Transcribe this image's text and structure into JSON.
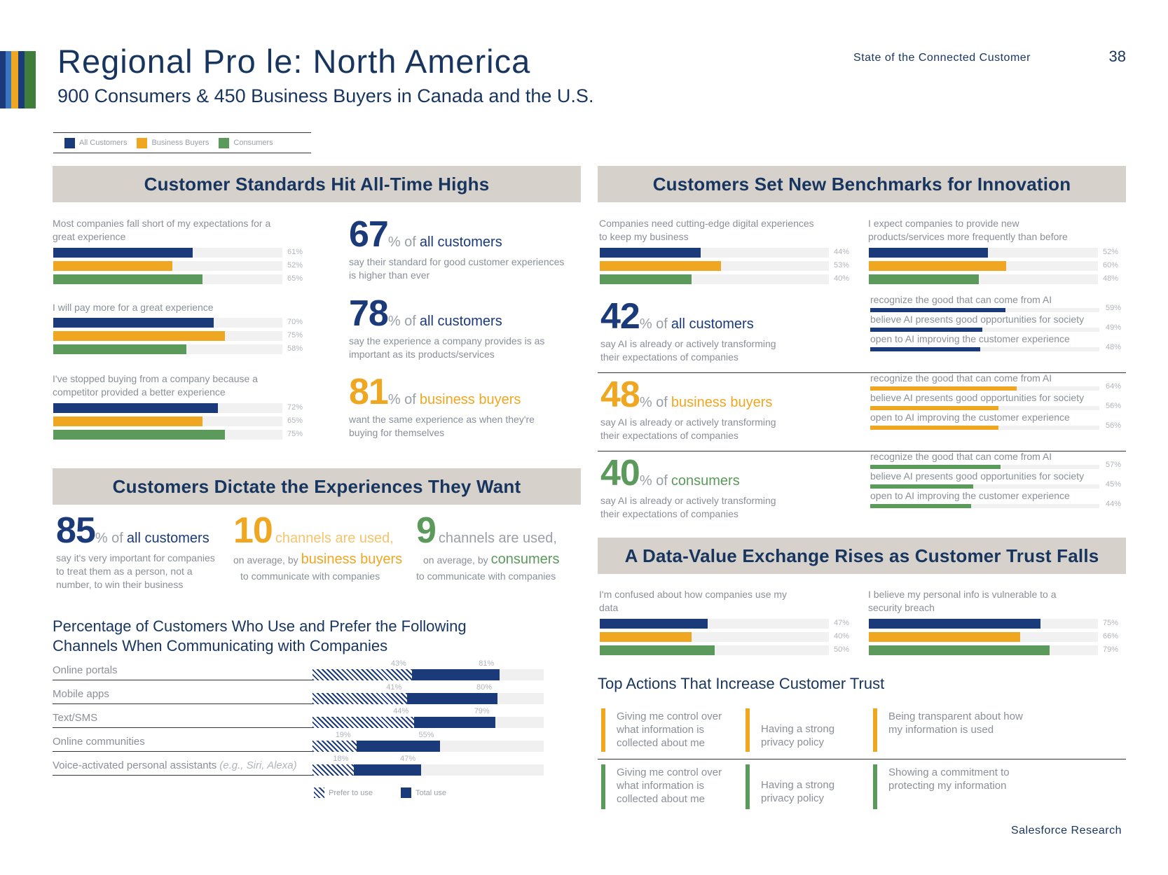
{
  "header": {
    "title": "Regional Pro  le: North America",
    "subtitle": "900 Consumers & 450 Business Buyers in Canada and the U.S.",
    "report_name": "State of the Connected Customer",
    "page_number": "38",
    "footer": "Salesforce Research"
  },
  "colors": {
    "all": "#1b3a7a",
    "business": "#efa722",
    "consumers": "#5b9a5b",
    "light_blue": "#3a77c2"
  },
  "legend": {
    "all": "All Customers",
    "business": "Business Buyers",
    "consumers": "Consumers"
  },
  "standards": {
    "title": "Customer Standards Hit All-Time Highs",
    "bars": [
      {
        "label": "Most companies fall short of my expectations for a great experience",
        "values": [
          61,
          52,
          65
        ],
        "texts": [
          "61%",
          "52%",
          "65%"
        ]
      },
      {
        "label": "I will pay more for a great experience",
        "values": [
          70,
          75,
          58
        ],
        "texts": [
          "70%",
          "75%",
          "58%"
        ]
      },
      {
        "label": "I've stopped buying from a company because a competitor provided a better experience",
        "values": [
          72,
          65,
          75
        ],
        "texts": [
          "72%",
          "65%",
          "75%"
        ]
      }
    ],
    "stats": [
      {
        "number": "67",
        "pct": "% of",
        "who": "all customers",
        "desc": "say their standard for good customer experiences is higher than ever"
      },
      {
        "number": "78",
        "pct": "% of",
        "who": "all customers",
        "desc": "say the experience a company provides is as important as its products/services"
      },
      {
        "number": "81",
        "pct": "% of",
        "who": "business buyers",
        "desc": "want the same experience as when they're buying for themselves"
      }
    ]
  },
  "experiences": {
    "title": "Customers Dictate the Experiences They Want",
    "stats": [
      {
        "number": "85",
        "pct": "% of",
        "who": "all customers",
        "desc": "say it's very important for companies to treat them as a person, not a number, to win their business"
      },
      {
        "number": "10",
        "rest": "channels are used,",
        "prefix": "on average, by",
        "who": "business buyers",
        "desc": "to communicate with companies"
      },
      {
        "number": "9",
        "rest": "channels are used,",
        "prefix": "on average, by",
        "who": "consumers",
        "desc": "to communicate with companies"
      }
    ]
  },
  "channels": {
    "title": "Percentage of Customers Who Use and Prefer the Following Channels When Communicating with Companies",
    "legend_prefer": "Prefer to use",
    "legend_total": "Total use",
    "rows": [
      {
        "label": "Online portals",
        "example": "",
        "prefer": 43,
        "total": 81,
        "prefer_text": "43%",
        "total_text": "81%"
      },
      {
        "label": "Mobile apps",
        "example": "",
        "prefer": 41,
        "total": 80,
        "prefer_text": "41%",
        "total_text": "80%"
      },
      {
        "label": "Text/SMS",
        "example": "",
        "prefer": 44,
        "total": 79,
        "prefer_text": "44%",
        "total_text": "79%"
      },
      {
        "label": "Online communities",
        "example": "",
        "prefer": 19,
        "total": 55,
        "prefer_text": "19%",
        "total_text": "55%"
      },
      {
        "label": "Voice-activated personal assistants",
        "example": "(e.g., Siri, Alexa)",
        "prefer": 18,
        "total": 47,
        "prefer_text": "18%",
        "total_text": "47%"
      }
    ]
  },
  "innovation": {
    "title": "Customers Set New Benchmarks for Innovation",
    "bars": [
      {
        "label": "Companies need cutting-edge digital experiences to keep my business",
        "values": [
          44,
          53,
          40
        ],
        "texts": [
          "44%",
          "53%",
          "40%"
        ]
      },
      {
        "label": "I expect companies to provide new products/services more frequently than before",
        "values": [
          52,
          60,
          48
        ],
        "texts": [
          "52%",
          "60%",
          "48%"
        ]
      }
    ],
    "ai_groups": [
      {
        "number": "42",
        "pct": "% of",
        "who": "all customers",
        "desc": "say AI is already or actively transforming their expectations of companies",
        "items": [
          {
            "label": "recognize the good that can come from AI",
            "value": 59,
            "text": "59%"
          },
          {
            "label": "believe AI presents good opportunities for society",
            "value": 49,
            "text": "49%"
          },
          {
            "label": "open to AI improving the customer experience",
            "value": 48,
            "text": "48%"
          }
        ]
      },
      {
        "number": "48",
        "pct": "% of",
        "who": "business buyers",
        "desc": "say AI is already or actively transforming their expectations of companies",
        "items": [
          {
            "label": "recognize the good that can come from AI",
            "value": 64,
            "text": "64%"
          },
          {
            "label": "believe AI presents good opportunities for society",
            "value": 56,
            "text": "56%"
          },
          {
            "label": "open to AI improving the customer experience",
            "value": 56,
            "text": "56%"
          }
        ]
      },
      {
        "number": "40",
        "pct": "% of",
        "who": "consumers",
        "desc": "say AI is already or actively transforming their expectations of companies",
        "items": [
          {
            "label": "recognize the good that can come from AI",
            "value": 57,
            "text": "57%"
          },
          {
            "label": "believe AI presents good opportunities for society",
            "value": 45,
            "text": "45%"
          },
          {
            "label": "open to AI improving the customer experience",
            "value": 44,
            "text": "44%"
          }
        ]
      }
    ]
  },
  "trust": {
    "title": "A Data-Value Exchange Rises as Customer Trust Falls",
    "bars": [
      {
        "label": "I'm confused about how companies use my data",
        "values": [
          47,
          40,
          50
        ],
        "texts": [
          "47%",
          "40%",
          "50%"
        ]
      },
      {
        "label": "I believe my personal info is vulnerable to a security breach",
        "values": [
          75,
          66,
          79
        ],
        "texts": [
          "75%",
          "66%",
          "79%"
        ]
      }
    ],
    "actions_title": "Top Actions That Increase Customer Trust",
    "business_actions": [
      "Giving me control over what information is collected about me",
      "Having a strong privacy policy",
      "Being transparent about how my information is used"
    ],
    "consumer_actions": [
      "Giving me control over what information is collected about me",
      "Having a strong privacy policy",
      "Showing a commitment to protecting my information"
    ]
  }
}
